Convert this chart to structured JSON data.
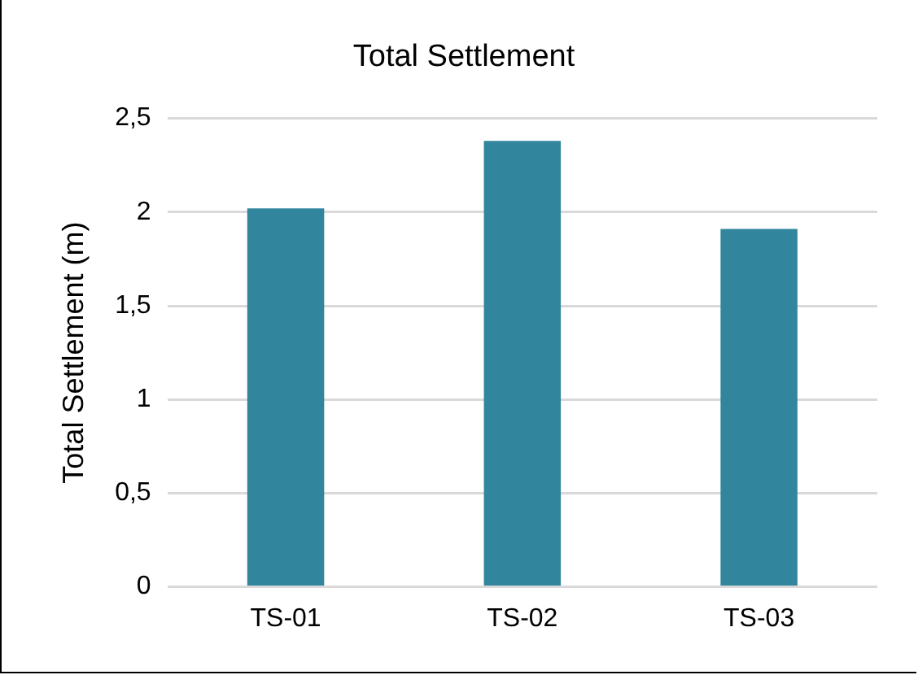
{
  "chart_data": {
    "type": "bar",
    "title": "Total Settlement",
    "ylabel": "Total Settlement (m)",
    "categories": [
      "TS-01",
      "TS-02",
      "TS-03"
    ],
    "values": [
      2.02,
      2.38,
      1.91
    ],
    "color": "#31859c",
    "ylim": [
      0,
      2.5
    ],
    "yticks": [
      0,
      {
        "value": 0.5,
        "label": "0,5"
      },
      1,
      {
        "value": 1.5,
        "label": "1,5"
      },
      2,
      {
        "value": 2.5,
        "label": "2,5"
      }
    ],
    "grid": "y",
    "legend": false
  }
}
